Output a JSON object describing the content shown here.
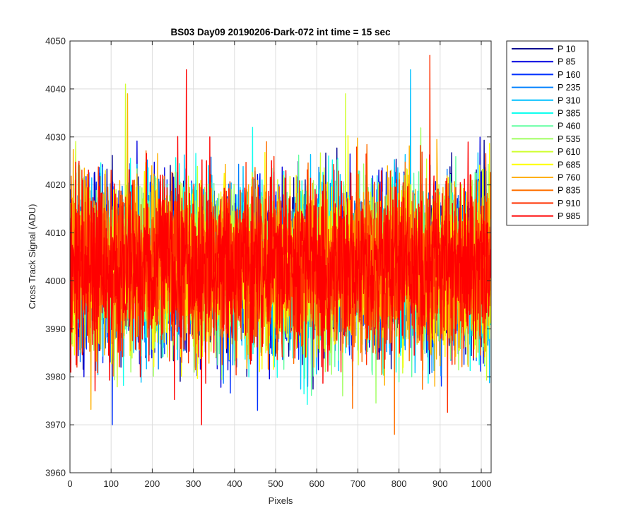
{
  "chart_data": {
    "type": "line",
    "title": "BS03 Day09 20190206-Dark-072 int time = 15 sec",
    "xlabel": "Pixels",
    "ylabel": "Cross Track Signal (ADU)",
    "xlim": [
      0,
      1024
    ],
    "ylim": [
      3960,
      4050
    ],
    "xticks": [
      0,
      100,
      200,
      300,
      400,
      500,
      600,
      700,
      800,
      900,
      1000
    ],
    "yticks": [
      3960,
      3970,
      3980,
      3990,
      4000,
      4010,
      4020,
      4030,
      4040,
      4050
    ],
    "xticklabels": [
      "0",
      "100",
      "200",
      "300",
      "400",
      "500",
      "600",
      "700",
      "800",
      "900",
      "1000"
    ],
    "yticklabels": [
      "3960",
      "3970",
      "3980",
      "3990",
      "4000",
      "4010",
      "4020",
      "4030",
      "4040",
      "4050"
    ],
    "grid": true,
    "legend_position": "outside-right-top",
    "signal_summary": {
      "mean": 4003,
      "typical_range": [
        3985,
        4024
      ],
      "min_observed": 3968,
      "max_observed": 4047
    },
    "series": [
      {
        "name": "P 10",
        "color": "#00008f",
        "seed": 11
      },
      {
        "name": "P 85",
        "color": "#0000df",
        "seed": 23
      },
      {
        "name": "P 160",
        "color": "#0030ff",
        "seed": 37
      },
      {
        "name": "P 235",
        "color": "#0080ff",
        "seed": 41
      },
      {
        "name": "P 310",
        "color": "#00c0ff",
        "seed": 53
      },
      {
        "name": "P 385",
        "color": "#10ffef",
        "seed": 67
      },
      {
        "name": "P 460",
        "color": "#60ffa0",
        "seed": 71
      },
      {
        "name": "P 535",
        "color": "#a0ff60",
        "seed": 83
      },
      {
        "name": "P 610",
        "color": "#d0ff30",
        "seed": 97
      },
      {
        "name": "P 685",
        "color": "#ffff00",
        "seed": 101
      },
      {
        "name": "P 760",
        "color": "#ffb000",
        "seed": 113
      },
      {
        "name": "P 835",
        "color": "#ff7000",
        "seed": 127
      },
      {
        "name": "P 910",
        "color": "#ff3000",
        "seed": 131
      },
      {
        "name": "P 985",
        "color": "#ff0000",
        "seed": 139
      }
    ],
    "notable_spikes": [
      {
        "series": "P 160",
        "x": 103,
        "y": 3970
      },
      {
        "series": "P 610",
        "x": 135,
        "y": 4041
      },
      {
        "series": "P 760",
        "x": 140,
        "y": 4039
      },
      {
        "series": "P 985",
        "x": 283,
        "y": 4044
      },
      {
        "series": "P 985",
        "x": 320,
        "y": 3970
      },
      {
        "series": "P 310",
        "x": 828,
        "y": 4044
      },
      {
        "series": "P 910",
        "x": 875,
        "y": 4047
      },
      {
        "series": "P 835",
        "x": 789,
        "y": 3968
      },
      {
        "series": "P 160",
        "x": 456,
        "y": 3973
      },
      {
        "series": "P 610",
        "x": 670,
        "y": 4039
      }
    ]
  }
}
